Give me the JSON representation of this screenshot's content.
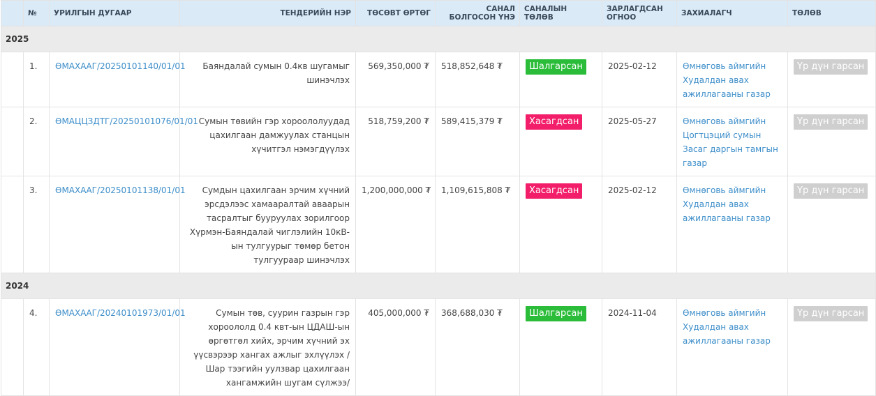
{
  "headers": {
    "no": "№",
    "invite_no": "УРИЛГЫН ДУГААР",
    "tender_name": "ТЕНДЕРИЙН НЭР",
    "budget": "ТӨСӨВТ ӨРТӨГ",
    "offered_price": "САНАЛ БОЛГОСОН ҮНЭ",
    "offer_status": "САНАЛЫН ТӨЛӨВ",
    "announced_date": "ЗАРЛАГДСАН ОГНОО",
    "buyer": "ЗАХИАЛАГЧ",
    "status": "ТӨЛӨВ"
  },
  "groups": [
    {
      "year": "2025",
      "rows": [
        {
          "no": "1.",
          "invite_no": "ӨМАХААГ/20250101140/01/01",
          "tender_name": "Баяндалай сумын 0.4кв шугамыг шинэчлэх",
          "budget": "569,350,000 ₮",
          "offered_price": "518,852,648 ₮",
          "offer_status": "Шалгарсан",
          "offer_status_kind": "ok",
          "announced_date": "2025-02-12",
          "buyer": "Өмнөговь аймгийн Худалдан авах ажиллагааны газар",
          "status": "Үр дүн гарсан"
        },
        {
          "no": "2.",
          "invite_no": "ӨМАЦЦЗДТГ/20250101076/01/01",
          "tender_name": "Сумын төвийн гэр хороололуудад цахилгаан дамжуулах станцын хүчитгэл нэмэгдүүлэх",
          "budget": "518,759,200 ₮",
          "offered_price": "589,415,379 ₮",
          "offer_status": "Хасагдсан",
          "offer_status_kind": "rej",
          "announced_date": "2025-05-27",
          "buyer": "Өмнөговь аймгийн Цогтцэций сумын Засаг даргын тамгын газар",
          "status": "Үр дүн гарсан"
        },
        {
          "no": "3.",
          "invite_no": "ӨМАХААГ/20250101138/01/01",
          "tender_name": "Сумдын цахилгаан эрчим хүчний эрсдэлээс хамааралтай аваарын тасралтыг бууруулах зорилгоор Хүрмэн-Баяндалай чиглэлийн 10кВ-ын тулгуурыг төмөр бетон тулгуураар шинэчлэх",
          "budget": "1,200,000,000 ₮",
          "offered_price": "1,109,615,808 ₮",
          "offer_status": "Хасагдсан",
          "offer_status_kind": "rej",
          "announced_date": "2025-02-12",
          "buyer": "Өмнөговь аймгийн Худалдан авах ажиллагааны газар",
          "status": "Үр дүн гарсан"
        }
      ]
    },
    {
      "year": "2024",
      "rows": [
        {
          "no": "4.",
          "invite_no": "ӨМАХААГ/20240101973/01/01",
          "tender_name": "Сумын төв, суурин газрын гэр хороололд 0.4 квт-ын ЦДАШ-ын өргөтгөл хийх, эрчим хүчний эх үүсвэрээр хангах ажлыг эхлүүлэх /Шар тээгийн уулзвар цахилгаан хангамжийн шугам сүлжээ/",
          "budget": "405,000,000 ₮",
          "offered_price": "368,688,030 ₮",
          "offer_status": "Шалгарсан",
          "offer_status_kind": "ok",
          "announced_date": "2024-11-04",
          "buyer": "Өмнөговь аймгийн Худалдан авах ажиллагааны газар",
          "status": "Үр дүн гарсан"
        }
      ]
    }
  ]
}
